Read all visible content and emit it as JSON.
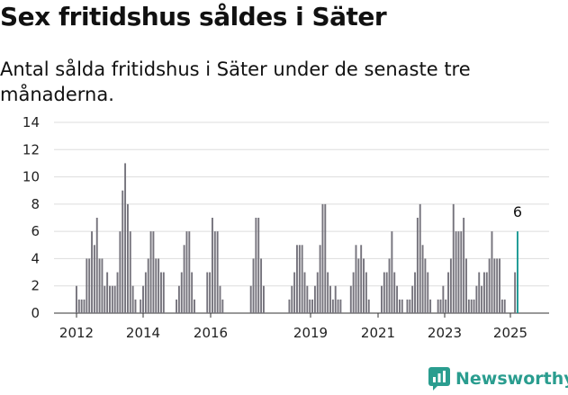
{
  "header": {
    "title": "Sex fritidshus såldes i Säter",
    "subtitle": "Antal sålda fritidshus i Säter under de senaste tre månaderna."
  },
  "brand": {
    "name": "Newsworthy",
    "color": "#2a9d8f"
  },
  "colors": {
    "bar": "#75737c",
    "highlight": "#1a9a93",
    "grid": "#dddddd"
  },
  "chart_data": {
    "type": "bar",
    "title": "Sex fritidshus såldes i Säter",
    "ylabel": "",
    "xlabel": "",
    "ylim": [
      0,
      14
    ],
    "y_ticks": [
      0,
      2,
      4,
      6,
      8,
      10,
      12,
      14
    ],
    "x_ticks": [
      "2012",
      "2014",
      "2016",
      "2019",
      "2021",
      "2023",
      "2025"
    ],
    "grid": true,
    "highlight_label": "6",
    "series": [
      {
        "values": [
          2,
          1,
          1,
          1,
          4,
          4,
          6,
          5,
          7,
          4,
          4,
          2,
          3,
          2,
          2,
          2,
          3,
          6,
          9,
          11,
          8,
          6,
          2,
          1,
          0,
          1,
          2,
          3,
          4,
          6,
          6,
          4,
          4,
          3,
          3,
          0,
          0,
          0,
          0,
          1,
          2,
          3,
          5,
          6,
          6,
          3,
          1,
          0,
          0,
          0,
          0,
          3,
          3,
          7,
          6,
          6,
          2,
          1,
          0,
          0,
          0,
          0,
          0,
          0,
          0,
          0,
          0,
          0,
          2,
          4,
          7,
          7,
          4,
          2,
          0,
          0,
          0,
          0,
          0,
          0,
          0,
          0,
          0,
          1,
          2,
          3,
          5,
          5,
          5,
          3,
          2,
          1,
          1,
          2,
          3,
          5,
          8,
          8,
          3,
          2,
          1,
          2,
          1,
          1,
          0,
          0,
          0,
          2,
          3,
          5,
          4,
          5,
          4,
          3,
          1,
          0,
          0,
          0,
          0,
          2,
          3,
          3,
          4,
          6,
          3,
          2,
          1,
          1,
          0,
          1,
          1,
          2,
          3,
          7,
          8,
          5,
          4,
          3,
          1,
          0,
          0,
          1,
          1,
          2,
          1,
          3,
          4,
          8,
          6,
          6,
          6,
          7,
          4,
          1,
          1,
          1,
          2,
          3,
          2,
          3,
          3,
          4,
          6,
          4,
          4,
          4,
          1,
          1,
          0,
          0,
          0,
          3,
          6
        ]
      }
    ]
  }
}
